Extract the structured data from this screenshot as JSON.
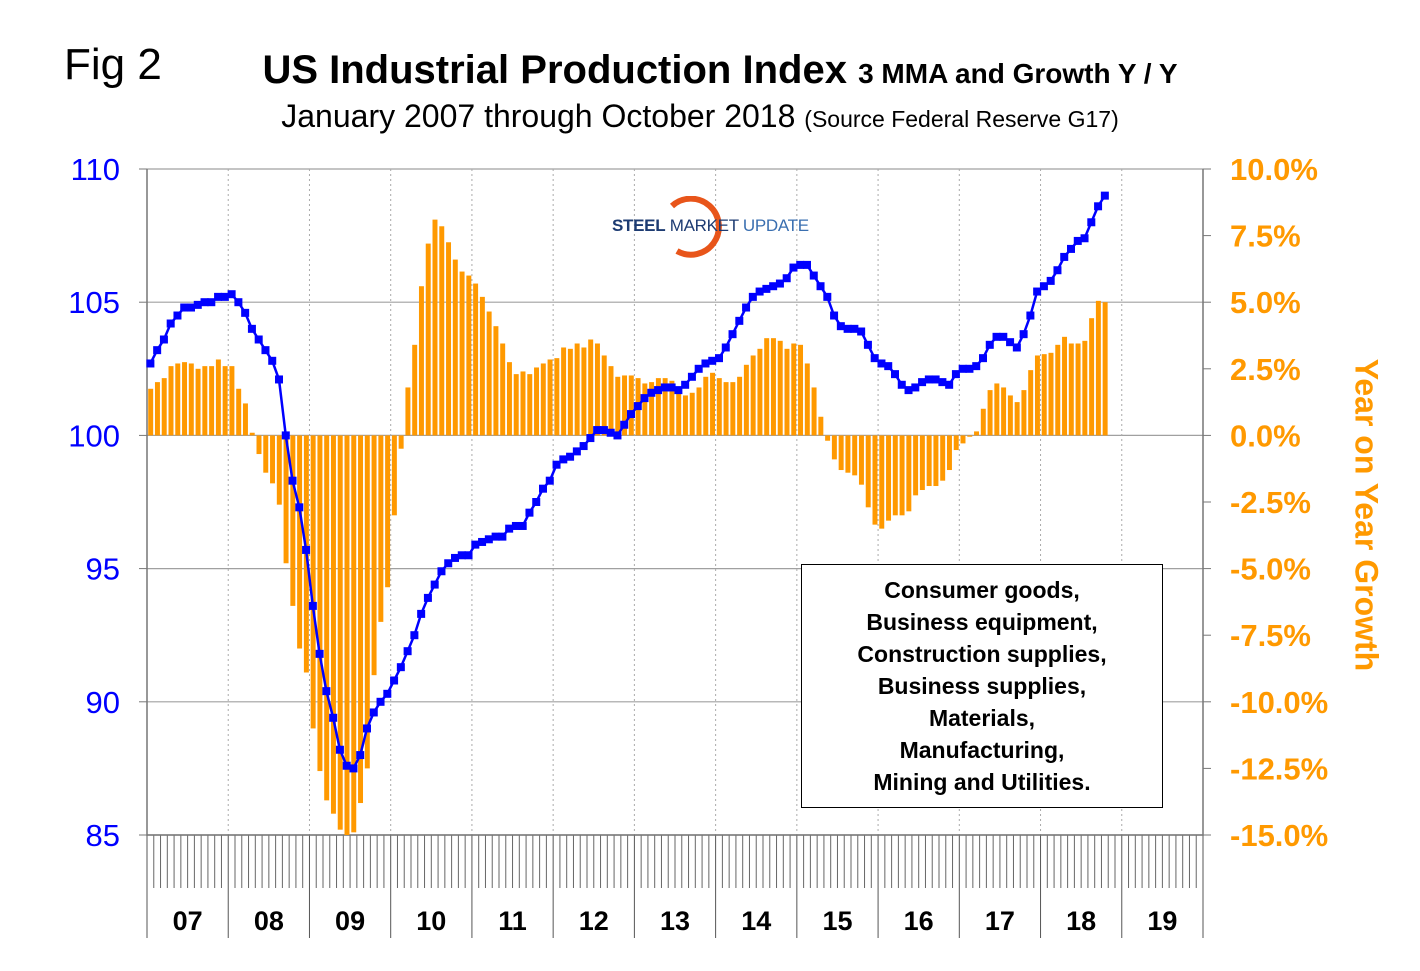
{
  "figure_label": "Fig 2",
  "title_main": "US Industrial Production Index",
  "title_suffix": "3 MMA and Growth Y / Y",
  "subtitle_main": "January 2007 through October 2018",
  "subtitle_source": "(Source Federal Reserve G17)",
  "logo": {
    "part1": "STEEL",
    "part2": "MARKET",
    "part3": "UPDATE"
  },
  "legend_lines": [
    "Consumer goods,",
    "Business equipment,",
    "Construction supplies,",
    "Business supplies,",
    "Materials,",
    "Manufacturing,",
    "Mining and Utilities."
  ],
  "colors": {
    "index": "#0000FF",
    "growth": "#FF9900",
    "grid": "#a0a0a0"
  },
  "chart_data": {
    "type": "bar+line",
    "title": "US Industrial Production Index 3 MMA and Growth Y / Y",
    "x_start": "2007-01",
    "x_end": "2018-10",
    "xlabel": "",
    "x_tick_labels": [
      "07",
      "08",
      "09",
      "10",
      "11",
      "12",
      "13",
      "14",
      "15",
      "16",
      "17",
      "18",
      "19"
    ],
    "y_left": {
      "label": "",
      "range": [
        85,
        110
      ],
      "ticks": [
        "110",
        "105",
        "100",
        "95",
        "90",
        "85"
      ],
      "tick_values": [
        110,
        105,
        100,
        95,
        90,
        85
      ]
    },
    "y_right": {
      "label": "Year on Year Growth",
      "range": [
        -15,
        10
      ],
      "ticks": [
        "10.0%",
        "7.5%",
        "5.0%",
        "2.5%",
        "0.0%",
        "-2.5%",
        "-5.0%",
        "-7.5%",
        "-10.0%",
        "-12.5%",
        "-15.0%"
      ],
      "tick_values": [
        10,
        7.5,
        5,
        2.5,
        0,
        -2.5,
        -5,
        -7.5,
        -10,
        -12.5,
        -15
      ]
    },
    "grid": true,
    "legend_placement": "bottom-right",
    "series": [
      {
        "name": "Index 3MMA",
        "type": "line",
        "axis": "left",
        "values": [
          102.7,
          103.2,
          103.6,
          104.2,
          104.5,
          104.8,
          104.8,
          104.9,
          105.0,
          105.0,
          105.2,
          105.2,
          105.3,
          105.0,
          104.6,
          104.0,
          103.6,
          103.2,
          102.8,
          102.1,
          100.0,
          98.3,
          97.3,
          95.7,
          93.6,
          91.8,
          90.4,
          89.4,
          88.2,
          87.6,
          87.5,
          88.0,
          89.0,
          89.6,
          90.0,
          90.3,
          90.8,
          91.3,
          91.9,
          92.5,
          93.3,
          93.9,
          94.4,
          94.9,
          95.2,
          95.4,
          95.5,
          95.5,
          95.9,
          96.0,
          96.1,
          96.2,
          96.2,
          96.5,
          96.6,
          96.6,
          97.1,
          97.5,
          98.0,
          98.3,
          98.9,
          99.1,
          99.2,
          99.4,
          99.6,
          99.9,
          100.2,
          100.2,
          100.1,
          100.0,
          100.4,
          100.8,
          101.1,
          101.4,
          101.6,
          101.7,
          101.8,
          101.8,
          101.7,
          101.9,
          102.2,
          102.5,
          102.7,
          102.8,
          102.9,
          103.3,
          103.8,
          104.3,
          104.8,
          105.2,
          105.4,
          105.5,
          105.6,
          105.7,
          105.9,
          106.3,
          106.4,
          106.4,
          106.0,
          105.6,
          105.2,
          104.5,
          104.1,
          104.0,
          104.0,
          103.9,
          103.4,
          102.9,
          102.7,
          102.6,
          102.3,
          101.9,
          101.7,
          101.8,
          102.0,
          102.1,
          102.1,
          102.0,
          101.9,
          102.3,
          102.5,
          102.5,
          102.6,
          102.9,
          103.4,
          103.7,
          103.7,
          103.5,
          103.3,
          103.8,
          104.5,
          105.4,
          105.6,
          105.8,
          106.2,
          106.7,
          107.0,
          107.3,
          107.4,
          108.0,
          108.6,
          109.0
        ]
      },
      {
        "name": "Growth Y/Y %",
        "type": "bar",
        "axis": "right",
        "values": [
          1.75,
          2.0,
          2.15,
          2.6,
          2.7,
          2.75,
          2.7,
          2.5,
          2.6,
          2.6,
          2.85,
          2.6,
          2.6,
          1.75,
          1.2,
          0.1,
          -0.7,
          -1.4,
          -1.8,
          -2.6,
          -4.8,
          -6.4,
          -8.0,
          -8.9,
          -11.0,
          -12.6,
          -13.7,
          -14.2,
          -14.8,
          -15.0,
          -14.9,
          -13.8,
          -12.5,
          -9.0,
          -7.0,
          -5.7,
          -3.0,
          -0.5,
          1.8,
          3.4,
          5.6,
          7.2,
          8.1,
          7.85,
          7.25,
          6.6,
          6.15,
          6.0,
          5.7,
          5.2,
          4.65,
          4.1,
          3.45,
          2.75,
          2.3,
          2.4,
          2.3,
          2.55,
          2.7,
          2.85,
          2.9,
          3.3,
          3.25,
          3.45,
          3.3,
          3.6,
          3.45,
          3.0,
          2.6,
          2.2,
          2.25,
          2.25,
          2.15,
          1.95,
          2.0,
          2.15,
          2.15,
          2.05,
          1.7,
          1.5,
          1.6,
          1.8,
          2.2,
          2.35,
          2.15,
          2.0,
          2.0,
          2.2,
          2.65,
          3.0,
          3.25,
          3.65,
          3.65,
          3.55,
          3.25,
          3.45,
          3.4,
          2.7,
          1.8,
          0.7,
          -0.2,
          -0.9,
          -1.3,
          -1.4,
          -1.5,
          -1.85,
          -2.7,
          -3.35,
          -3.5,
          -3.2,
          -3.0,
          -3.0,
          -2.85,
          -2.25,
          -2.05,
          -1.9,
          -1.9,
          -1.7,
          -1.3,
          -0.55,
          -0.3,
          -0.05,
          0.15,
          1.0,
          1.7,
          1.95,
          1.8,
          1.5,
          1.25,
          1.7,
          2.45,
          3.0,
          3.05,
          3.1,
          3.4,
          3.7,
          3.45,
          3.45,
          3.55,
          4.4,
          5.05,
          5.0
        ]
      }
    ]
  }
}
